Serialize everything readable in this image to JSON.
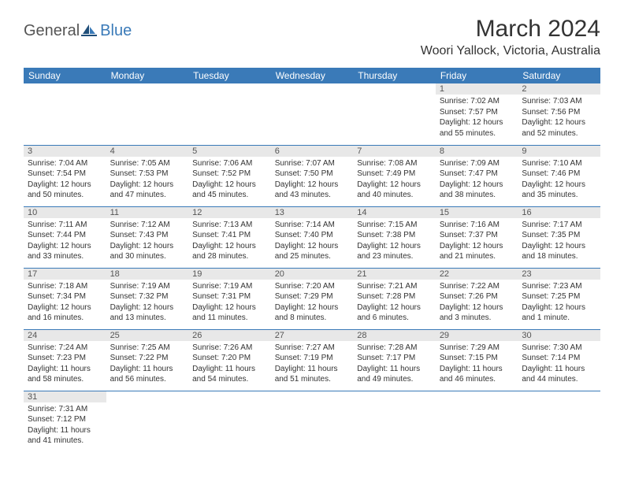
{
  "logo": {
    "part1": "General",
    "part2": "Blue"
  },
  "title": "March 2024",
  "location": "Woori Yallock, Victoria, Australia",
  "colors": {
    "header_bg": "#3a7ab8",
    "daynum_bg": "#e8e8e8"
  },
  "weekdays": [
    "Sunday",
    "Monday",
    "Tuesday",
    "Wednesday",
    "Thursday",
    "Friday",
    "Saturday"
  ],
  "weeks": [
    [
      null,
      null,
      null,
      null,
      null,
      {
        "n": "1",
        "sr": "7:02 AM",
        "ss": "7:57 PM",
        "dl": "12 hours and 55 minutes."
      },
      {
        "n": "2",
        "sr": "7:03 AM",
        "ss": "7:56 PM",
        "dl": "12 hours and 52 minutes."
      }
    ],
    [
      {
        "n": "3",
        "sr": "7:04 AM",
        "ss": "7:54 PM",
        "dl": "12 hours and 50 minutes."
      },
      {
        "n": "4",
        "sr": "7:05 AM",
        "ss": "7:53 PM",
        "dl": "12 hours and 47 minutes."
      },
      {
        "n": "5",
        "sr": "7:06 AM",
        "ss": "7:52 PM",
        "dl": "12 hours and 45 minutes."
      },
      {
        "n": "6",
        "sr": "7:07 AM",
        "ss": "7:50 PM",
        "dl": "12 hours and 43 minutes."
      },
      {
        "n": "7",
        "sr": "7:08 AM",
        "ss": "7:49 PM",
        "dl": "12 hours and 40 minutes."
      },
      {
        "n": "8",
        "sr": "7:09 AM",
        "ss": "7:47 PM",
        "dl": "12 hours and 38 minutes."
      },
      {
        "n": "9",
        "sr": "7:10 AM",
        "ss": "7:46 PM",
        "dl": "12 hours and 35 minutes."
      }
    ],
    [
      {
        "n": "10",
        "sr": "7:11 AM",
        "ss": "7:44 PM",
        "dl": "12 hours and 33 minutes."
      },
      {
        "n": "11",
        "sr": "7:12 AM",
        "ss": "7:43 PM",
        "dl": "12 hours and 30 minutes."
      },
      {
        "n": "12",
        "sr": "7:13 AM",
        "ss": "7:41 PM",
        "dl": "12 hours and 28 minutes."
      },
      {
        "n": "13",
        "sr": "7:14 AM",
        "ss": "7:40 PM",
        "dl": "12 hours and 25 minutes."
      },
      {
        "n": "14",
        "sr": "7:15 AM",
        "ss": "7:38 PM",
        "dl": "12 hours and 23 minutes."
      },
      {
        "n": "15",
        "sr": "7:16 AM",
        "ss": "7:37 PM",
        "dl": "12 hours and 21 minutes."
      },
      {
        "n": "16",
        "sr": "7:17 AM",
        "ss": "7:35 PM",
        "dl": "12 hours and 18 minutes."
      }
    ],
    [
      {
        "n": "17",
        "sr": "7:18 AM",
        "ss": "7:34 PM",
        "dl": "12 hours and 16 minutes."
      },
      {
        "n": "18",
        "sr": "7:19 AM",
        "ss": "7:32 PM",
        "dl": "12 hours and 13 minutes."
      },
      {
        "n": "19",
        "sr": "7:19 AM",
        "ss": "7:31 PM",
        "dl": "12 hours and 11 minutes."
      },
      {
        "n": "20",
        "sr": "7:20 AM",
        "ss": "7:29 PM",
        "dl": "12 hours and 8 minutes."
      },
      {
        "n": "21",
        "sr": "7:21 AM",
        "ss": "7:28 PM",
        "dl": "12 hours and 6 minutes."
      },
      {
        "n": "22",
        "sr": "7:22 AM",
        "ss": "7:26 PM",
        "dl": "12 hours and 3 minutes."
      },
      {
        "n": "23",
        "sr": "7:23 AM",
        "ss": "7:25 PM",
        "dl": "12 hours and 1 minute."
      }
    ],
    [
      {
        "n": "24",
        "sr": "7:24 AM",
        "ss": "7:23 PM",
        "dl": "11 hours and 58 minutes."
      },
      {
        "n": "25",
        "sr": "7:25 AM",
        "ss": "7:22 PM",
        "dl": "11 hours and 56 minutes."
      },
      {
        "n": "26",
        "sr": "7:26 AM",
        "ss": "7:20 PM",
        "dl": "11 hours and 54 minutes."
      },
      {
        "n": "27",
        "sr": "7:27 AM",
        "ss": "7:19 PM",
        "dl": "11 hours and 51 minutes."
      },
      {
        "n": "28",
        "sr": "7:28 AM",
        "ss": "7:17 PM",
        "dl": "11 hours and 49 minutes."
      },
      {
        "n": "29",
        "sr": "7:29 AM",
        "ss": "7:15 PM",
        "dl": "11 hours and 46 minutes."
      },
      {
        "n": "30",
        "sr": "7:30 AM",
        "ss": "7:14 PM",
        "dl": "11 hours and 44 minutes."
      }
    ],
    [
      {
        "n": "31",
        "sr": "7:31 AM",
        "ss": "7:12 PM",
        "dl": "11 hours and 41 minutes."
      },
      null,
      null,
      null,
      null,
      null,
      null
    ]
  ],
  "labels": {
    "sunrise": "Sunrise: ",
    "sunset": "Sunset: ",
    "daylight": "Daylight: "
  }
}
